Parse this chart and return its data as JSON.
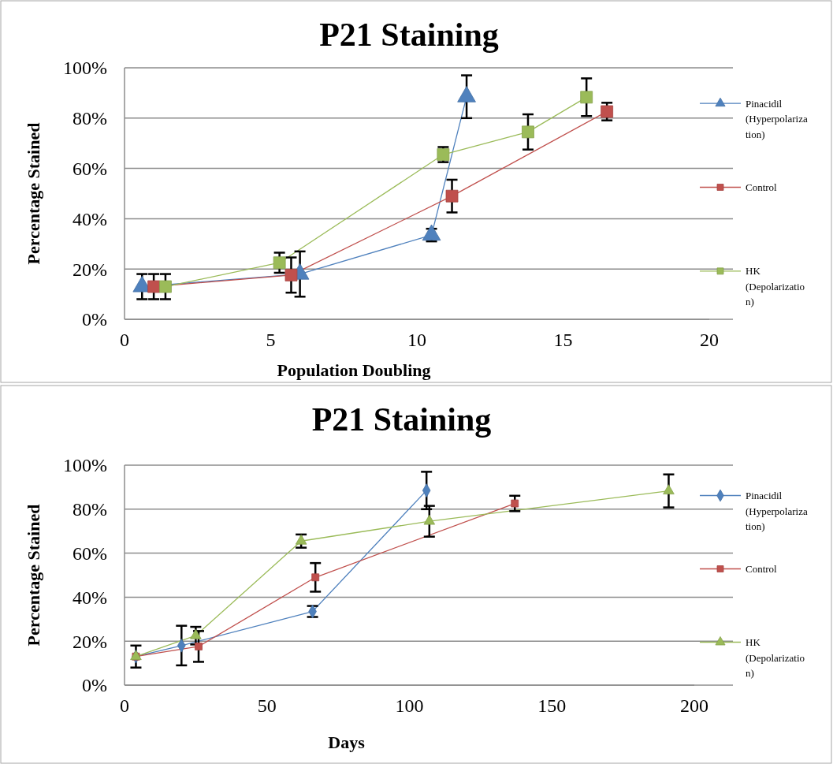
{
  "chart_data": [
    {
      "type": "line",
      "title": "P21 Staining",
      "xlabel": "Population Doubling",
      "ylabel": "Percentage Stained",
      "xlim": [
        0,
        20
      ],
      "xticks": [
        0,
        5,
        10,
        15,
        20
      ],
      "ylim": [
        0,
        100
      ],
      "yticks": [
        {
          "value": 0,
          "label": "0%"
        },
        {
          "value": 20,
          "label": "20%"
        },
        {
          "value": 40,
          "label": "40%"
        },
        {
          "value": 60,
          "label": "60%"
        },
        {
          "value": 80,
          "label": "80%"
        },
        {
          "value": 100,
          "label": "100%"
        }
      ],
      "grid": "y",
      "legend": "right",
      "line_style": "solid",
      "series": [
        {
          "name": "Pinacidil (Hyperpolarization)",
          "color": "#4f81bd",
          "marker": "triangle",
          "x": [
            0.6,
            6,
            10.5,
            11.7
          ],
          "values": [
            13,
            18,
            33.5,
            88.5
          ],
          "errors": [
            5,
            9,
            2.5,
            8.5
          ]
        },
        {
          "name": "Control",
          "color": "#c0504d",
          "marker": "square",
          "x": [
            1,
            5.7,
            11.2,
            16.5
          ],
          "values": [
            13,
            17.6,
            49,
            82.6
          ],
          "errors": [
            5,
            7,
            6.5,
            3.5
          ]
        },
        {
          "name": "HK (Depolarization)",
          "color": "#9bbb59",
          "marker": "square",
          "x": [
            1.4,
            5.3,
            10.9,
            13.8,
            15.8
          ],
          "values": [
            13,
            22.5,
            65.5,
            74.5,
            88.3
          ],
          "errors": [
            5,
            4,
            3,
            7,
            7.5
          ]
        }
      ]
    },
    {
      "type": "line",
      "title": "P21 Staining",
      "xlabel": "Days",
      "ylabel": "Percentage Stained",
      "xlim": [
        0,
        200
      ],
      "xticks": [
        0,
        50,
        100,
        150,
        200
      ],
      "ylim": [
        0,
        100
      ],
      "yticks": [
        {
          "value": 0,
          "label": "0%"
        },
        {
          "value": 20,
          "label": "20%"
        },
        {
          "value": 40,
          "label": "40%"
        },
        {
          "value": 60,
          "label": "60%"
        },
        {
          "value": 80,
          "label": "80%"
        },
        {
          "value": 100,
          "label": "100%"
        }
      ],
      "grid": "y",
      "legend": "right",
      "line_style": "solid",
      "series": [
        {
          "name": "Pinacidil (Hyperpolarization)",
          "color": "#4f81bd",
          "marker": "diamond",
          "x": [
            4,
            20,
            66,
            106
          ],
          "values": [
            13,
            18,
            33.5,
            88.5
          ],
          "errors": [
            5,
            9,
            2.5,
            8.5
          ]
        },
        {
          "name": "Control",
          "color": "#c0504d",
          "marker": "square",
          "x": [
            4,
            26,
            67,
            137
          ],
          "values": [
            13,
            17.6,
            49,
            82.6
          ],
          "errors": [
            null,
            7,
            6.5,
            3.5
          ]
        },
        {
          "name": "HK (Depolarization)",
          "color": "#9bbb59",
          "marker": "triangle",
          "x": [
            4,
            25,
            62,
            107,
            191
          ],
          "values": [
            13,
            22.5,
            65.5,
            74.5,
            88.3
          ],
          "errors": [
            null,
            4,
            3,
            7,
            7.5
          ]
        }
      ]
    }
  ]
}
